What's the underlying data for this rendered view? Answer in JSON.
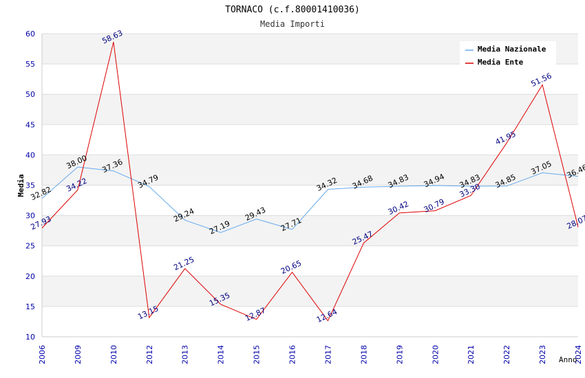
{
  "chart_data": {
    "type": "line",
    "title": "TORNACO (c.f.80001410036)",
    "subtitle": "Media Importi",
    "xlabel": "Anno",
    "ylabel": "Media",
    "ylim": [
      10,
      60
    ],
    "yticks": [
      "10",
      "15",
      "20",
      "25",
      "30",
      "35",
      "40",
      "45",
      "50",
      "55",
      "60"
    ],
    "categories": [
      "2006",
      "2009",
      "2010",
      "2012",
      "2013",
      "2014",
      "2015",
      "2016",
      "2017",
      "2018",
      "2019",
      "2020",
      "2021",
      "2022",
      "2023",
      "2024"
    ],
    "grid": true,
    "legend_position": "top-right",
    "series": [
      {
        "name": "Media Nazionale",
        "color": "#66aaee",
        "label_color": "#000000",
        "values": [
          32.82,
          38.0,
          37.36,
          34.79,
          29.24,
          27.19,
          29.43,
          27.71,
          34.32,
          34.68,
          34.83,
          34.94,
          34.83,
          34.85,
          37.05,
          36.46
        ],
        "labels": [
          "32.82",
          "38.00",
          "37.36",
          "34.79",
          "29.24",
          "27.19",
          "29.43",
          "27.71",
          "34.32",
          "34.68",
          "34.83",
          "34.94",
          "34.83",
          "34.85",
          "37.05",
          "36.46"
        ]
      },
      {
        "name": "Media Ente",
        "color": "#dd0000",
        "label_color": "#000080",
        "values": [
          27.93,
          34.22,
          58.63,
          13.15,
          21.25,
          15.35,
          12.87,
          20.65,
          12.64,
          25.47,
          30.42,
          30.79,
          33.3,
          41.95,
          51.56,
          28.07
        ],
        "labels": [
          "27.93",
          "34.22",
          "58.63",
          "13.15",
          "21.25",
          "15.35",
          "12.87",
          "20.65",
          "12.64",
          "25.47",
          "30.42",
          "30.79",
          "33.30",
          "41.95",
          "51.56",
          "28.07"
        ]
      }
    ]
  }
}
